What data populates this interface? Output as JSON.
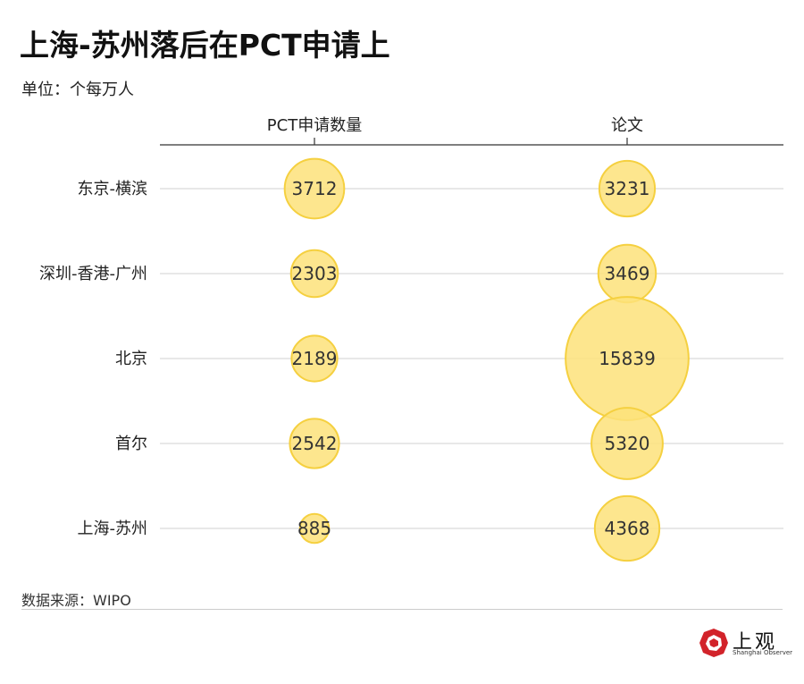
{
  "header": {
    "title": "上海-苏州落后在PCT申请上",
    "subtitle": "单位：个每万人"
  },
  "footer": {
    "source": "数据来源：WIPO"
  },
  "brand": {
    "name": "上观",
    "tagline": "Shanghai Observer",
    "color": "#d2232a"
  },
  "colors": {
    "bubble_fill": "#fde27a",
    "bubble_stroke": "#f5d040",
    "gridline": "#d9d9d9",
    "axis": "#333333"
  },
  "chart_data": {
    "type": "bubble",
    "title": "上海-苏州落后在PCT申请上",
    "subtitle": "单位：个每万人",
    "columns": [
      "PCT申请数量",
      "论文"
    ],
    "categories": [
      "东京-横滨",
      "深圳-香港-广州",
      "北京",
      "首尔",
      "上海-苏州"
    ],
    "series": [
      {
        "name": "PCT申请数量",
        "values": [
          3712,
          2303,
          2189,
          2542,
          885
        ]
      },
      {
        "name": "论文",
        "values": [
          3231,
          3469,
          15839,
          5320,
          4368
        ]
      }
    ],
    "size_encoding": "area proportional to value",
    "source": "数据来源：WIPO"
  }
}
